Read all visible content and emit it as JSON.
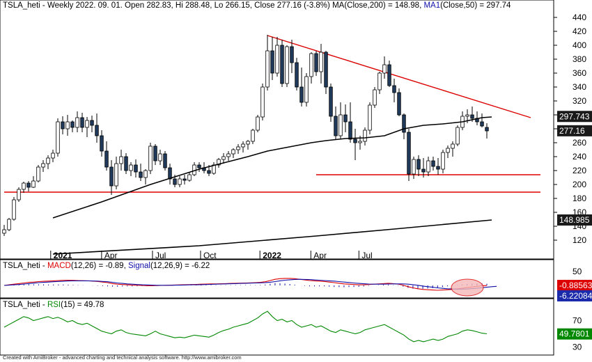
{
  "price_pane": {
    "symbol": "TSLA_heti",
    "period": "Weekly",
    "date": "2022. 09. 01.",
    "open_label": "Open",
    "open": "282.83",
    "hi_label": "Hi",
    "hi": "288.48",
    "lo_label": "Lo",
    "lo": "266.15",
    "close_label": "Close",
    "close": "277.16",
    "change": "(-3.8%)",
    "ma200_label": "MA(Close,200) =",
    "ma200": "148.98",
    "ma1_name": "MA1",
    "ma1_args": "(Close,50) =",
    "ma1": "297.74",
    "badges": {
      "ma1": "297.743",
      "close": "277.16",
      "ma200": "148.985"
    }
  },
  "macd_pane": {
    "symbol": "TSLA_heti",
    "macd_name": "MACD",
    "macd_args": "(12,26) = -0.89,",
    "signal_name": "Signal",
    "signal_args": "(12,26,9) = -6.22",
    "badges": {
      "macd": "-0.88563",
      "signal": "-6.22084"
    }
  },
  "rsi_pane": {
    "symbol": "TSLA_heti",
    "rsi_name": "RSI",
    "rsi_args": "(15) = 49.78",
    "badges": {
      "rsi": "49.7801"
    }
  },
  "footer": "Created with AmiBroker - advanced charting and technical analysis software. http://www.amibroker.com",
  "colors": {
    "up": "#ffffff",
    "down": "#1f3a5a",
    "wick": "#000000",
    "ma50": "#000000",
    "ma200": "#000000",
    "trendline": "#dd0000",
    "macd": "#dd0000",
    "signal": "#1010aa",
    "rsi": "#008800",
    "highlight": "#f4b8b8"
  },
  "chart_data": [
    {
      "type": "candlestick",
      "title": "TSLA_heti - Weekly 2022. 09. 01.",
      "x_tick_labels": [
        "2021",
        "Apr",
        "Jul",
        "Oct",
        "2022",
        "Apr",
        "Jul"
      ],
      "y_tick_labels": [
        "120",
        "140",
        "160",
        "180",
        "200",
        "220",
        "240",
        "260",
        "280",
        "300",
        "320",
        "340",
        "360",
        "380",
        "400",
        "420",
        "440"
      ],
      "ylim": [
        100,
        445
      ],
      "candles": [
        [
          130,
          142,
          126,
          135
        ],
        [
          135,
          152,
          133,
          150
        ],
        [
          150,
          182,
          148,
          178
        ],
        [
          178,
          196,
          175,
          193
        ],
        [
          193,
          204,
          188,
          202
        ],
        [
          202,
          205,
          190,
          196
        ],
        [
          196,
          212,
          195,
          205
        ],
        [
          205,
          228,
          203,
          225
        ],
        [
          225,
          235,
          218,
          230
        ],
        [
          230,
          242,
          222,
          238
        ],
        [
          238,
          250,
          232,
          245
        ],
        [
          245,
          295,
          240,
          290
        ],
        [
          290,
          298,
          272,
          280
        ],
        [
          280,
          300,
          270,
          290
        ],
        [
          290,
          292,
          275,
          282
        ],
        [
          282,
          305,
          275,
          296
        ],
        [
          296,
          303,
          275,
          282
        ],
        [
          282,
          297,
          268,
          292
        ],
        [
          292,
          299,
          275,
          285
        ],
        [
          285,
          302,
          260,
          270
        ],
        [
          270,
          278,
          240,
          248
        ],
        [
          248,
          262,
          220,
          225
        ],
        [
          225,
          235,
          185,
          198
        ],
        [
          198,
          240,
          193,
          230
        ],
        [
          230,
          250,
          220,
          240
        ],
        [
          240,
          245,
          215,
          220
        ],
        [
          220,
          232,
          212,
          228
        ],
        [
          228,
          236,
          210,
          218
        ],
        [
          218,
          230,
          205,
          210
        ],
        [
          210,
          222,
          200,
          220
        ],
        [
          220,
          260,
          215,
          255
        ],
        [
          255,
          258,
          228,
          234
        ],
        [
          234,
          250,
          228,
          244
        ],
        [
          244,
          248,
          220,
          224
        ],
        [
          224,
          230,
          200,
          208
        ],
        [
          208,
          214,
          196,
          200
        ],
        [
          200,
          212,
          196,
          208
        ],
        [
          208,
          214,
          200,
          206
        ],
        [
          206,
          218,
          204,
          214
        ],
        [
          214,
          232,
          212,
          228
        ],
        [
          228,
          232,
          218,
          224
        ],
        [
          224,
          232,
          216,
          220
        ],
        [
          220,
          228,
          212,
          216
        ],
        [
          216,
          232,
          214,
          228
        ],
        [
          228,
          238,
          224,
          236
        ],
        [
          236,
          245,
          230,
          240
        ],
        [
          240,
          248,
          234,
          244
        ],
        [
          244,
          252,
          238,
          250
        ],
        [
          250,
          258,
          244,
          254
        ],
        [
          254,
          262,
          246,
          258
        ],
        [
          258,
          264,
          250,
          262
        ],
        [
          262,
          280,
          258,
          278
        ],
        [
          278,
          300,
          275,
          297
        ],
        [
          297,
          345,
          292,
          340
        ],
        [
          340,
          415,
          335,
          392
        ],
        [
          392,
          412,
          350,
          360
        ],
        [
          360,
          412,
          355,
          400
        ],
        [
          400,
          408,
          340,
          345
        ],
        [
          345,
          400,
          340,
          398
        ],
        [
          398,
          408,
          360,
          375
        ],
        [
          375,
          382,
          335,
          340
        ],
        [
          340,
          368,
          312,
          318
        ],
        [
          318,
          360,
          312,
          355
        ],
        [
          355,
          390,
          345,
          388
        ],
        [
          388,
          392,
          356,
          362
        ],
        [
          362,
          402,
          345,
          390
        ],
        [
          390,
          392,
          330,
          340
        ],
        [
          340,
          345,
          290,
          298
        ],
        [
          298,
          312,
          265,
          270
        ],
        [
          270,
          318,
          265,
          300
        ],
        [
          300,
          315,
          275,
          290
        ],
        [
          290,
          318,
          260,
          265
        ],
        [
          265,
          280,
          235,
          260
        ],
        [
          260,
          270,
          250,
          262
        ],
        [
          262,
          282,
          256,
          278
        ],
        [
          278,
          318,
          272,
          314
        ],
        [
          314,
          340,
          310,
          336
        ],
        [
          336,
          362,
          330,
          360
        ],
        [
          360,
          384,
          352,
          372
        ],
        [
          372,
          378,
          340,
          342
        ],
        [
          342,
          352,
          318,
          332
        ],
        [
          332,
          338,
          298,
          300
        ],
        [
          300,
          302,
          265,
          275
        ],
        [
          275,
          280,
          205,
          215
        ],
        [
          215,
          240,
          208,
          236
        ],
        [
          236,
          242,
          212,
          222
        ],
        [
          222,
          238,
          210,
          218
        ],
        [
          218,
          240,
          212,
          234
        ],
        [
          234,
          240,
          220,
          226
        ],
        [
          226,
          238,
          214,
          222
        ],
        [
          222,
          250,
          216,
          246
        ],
        [
          246,
          256,
          238,
          252
        ],
        [
          252,
          262,
          240,
          258
        ],
        [
          258,
          285,
          255,
          282
        ],
        [
          282,
          305,
          278,
          298
        ],
        [
          298,
          308,
          288,
          300
        ],
        [
          300,
          312,
          290,
          295
        ],
        [
          295,
          305,
          285,
          290
        ],
        [
          290,
          302,
          282,
          284
        ],
        [
          282,
          288,
          266,
          277
        ]
      ],
      "trendlines": [
        {
          "name": "red-descending",
          "x": [
            54,
            108
          ],
          "y": [
            414,
            296
          ]
        },
        {
          "name": "red-support-low",
          "x": [
            0,
            110
          ],
          "y": [
            189,
            189
          ]
        },
        {
          "name": "red-support-high",
          "x": [
            64,
            110
          ],
          "y": [
            214,
            214
          ]
        }
      ],
      "series": [
        {
          "name": "MA1(Close,50)",
          "end_value": 297.74,
          "values": [
            [
              10,
              152
            ],
            [
              20,
              175
            ],
            [
              30,
              200
            ],
            [
              40,
              222
            ],
            [
              50,
              240
            ],
            [
              54,
              248
            ],
            [
              60,
              256
            ],
            [
              63,
              260
            ],
            [
              66,
              263
            ],
            [
              70,
              266
            ],
            [
              74,
              267
            ],
            [
              78,
              270
            ],
            [
              82,
              280
            ],
            [
              86,
              285
            ],
            [
              90,
              287
            ],
            [
              94,
              290
            ],
            [
              98,
              296
            ],
            [
              100,
              297
            ]
          ]
        },
        {
          "name": "MA(Close,200)",
          "end_value": 148.98,
          "values": [
            [
              10,
              100
            ],
            [
              40,
              112
            ],
            [
              64,
              126
            ],
            [
              80,
              136
            ],
            [
              100,
              149
            ]
          ]
        }
      ]
    },
    {
      "type": "line",
      "title": "MACD(12,26) = -0.89, Signal(12,26,9) = -6.22",
      "y_tick_labels": [
        "50"
      ],
      "series": [
        {
          "name": "MACD(12,26)",
          "values": [
            0,
            4,
            8,
            12,
            16,
            20,
            22,
            25,
            27,
            28,
            30,
            32,
            33,
            34,
            33,
            32,
            31,
            30,
            28,
            26,
            22,
            18,
            12,
            8,
            6,
            4,
            2,
            1,
            0,
            -2,
            -2,
            -1,
            0,
            1,
            2,
            3,
            4,
            5,
            6,
            7,
            8,
            9,
            10,
            10,
            11,
            12,
            13,
            14,
            15,
            16,
            17,
            18,
            20,
            24,
            32,
            40,
            44,
            46,
            46,
            44,
            40,
            36,
            32,
            30,
            28,
            26,
            22,
            18,
            14,
            10,
            8,
            6,
            4,
            4,
            6,
            8,
            10,
            12,
            14,
            12,
            8,
            2,
            -8,
            -16,
            -22,
            -26,
            -28,
            -30,
            -32,
            -30,
            -28,
            -26,
            -22,
            -18,
            -14,
            -10,
            -6,
            -2,
            -1
          ],
          "end_value": -0.89
        },
        {
          "name": "Signal(12,26,9)",
          "values": [
            0,
            2,
            4,
            6,
            9,
            12,
            15,
            18,
            20,
            22,
            24,
            26,
            27,
            29,
            30,
            30,
            30,
            30,
            29,
            28,
            26,
            24,
            20,
            16,
            13,
            10,
            8,
            6,
            4,
            3,
            2,
            1,
            1,
            1,
            1,
            2,
            2,
            3,
            4,
            4,
            5,
            6,
            7,
            8,
            9,
            10,
            11,
            12,
            13,
            14,
            15,
            16,
            17,
            18,
            21,
            25,
            30,
            34,
            37,
            39,
            40,
            39,
            38,
            36,
            34,
            32,
            30,
            28,
            25,
            22,
            19,
            16,
            13,
            11,
            9,
            8,
            8,
            8,
            9,
            10,
            10,
            10,
            8,
            5,
            1,
            -4,
            -8,
            -12,
            -16,
            -19,
            -22,
            -23,
            -24,
            -24,
            -23,
            -21,
            -18,
            -15,
            -12,
            -8,
            -6
          ],
          "end_value": -6.22
        }
      ]
    },
    {
      "type": "line",
      "title": "RSI(15) = 49.78",
      "y_tick_labels": [
        "70",
        "30"
      ],
      "ylim": [
        20,
        100
      ],
      "series": [
        {
          "name": "RSI(15)",
          "values": [
            60,
            64,
            68,
            72,
            76,
            74,
            70,
            72,
            74,
            76,
            73,
            75,
            72,
            68,
            70,
            66,
            64,
            66,
            62,
            58,
            54,
            52,
            50,
            54,
            56,
            52,
            50,
            49,
            48,
            47,
            50,
            54,
            50,
            48,
            46,
            44,
            45,
            44,
            46,
            48,
            47,
            46,
            45,
            48,
            52,
            55,
            57,
            60,
            62,
            64,
            66,
            70,
            74,
            80,
            84,
            76,
            70,
            72,
            68,
            70,
            64,
            60,
            62,
            64,
            60,
            62,
            58,
            54,
            52,
            56,
            54,
            52,
            50,
            52,
            56,
            58,
            60,
            62,
            64,
            60,
            56,
            52,
            48,
            42,
            38,
            40,
            38,
            40,
            42,
            40,
            42,
            46,
            48,
            50,
            54,
            56,
            55,
            53,
            51,
            50
          ],
          "end_value": 49.78
        }
      ]
    }
  ]
}
